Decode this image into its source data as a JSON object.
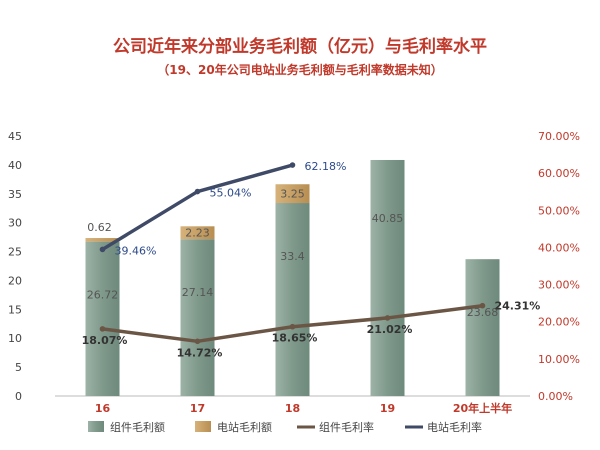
{
  "chart_data": {
    "type": "bar",
    "title": "公司近年来分部业务毛利额（亿元）与毛利率水平",
    "subtitle": "（19、20年公司电站业务毛利额与毛利率数据未知）",
    "categories": [
      "16",
      "17",
      "18",
      "19",
      "20年上半年"
    ],
    "series": [
      {
        "name": "组件毛利额",
        "type": "bar",
        "axis": "left",
        "values": [
          26.72,
          27.14,
          33.4,
          40.85,
          23.68
        ],
        "labels": [
          "26.72",
          "27.14",
          "33.4",
          "40.85",
          "23.68"
        ],
        "color": "#8aa396"
      },
      {
        "name": "电站毛利额",
        "type": "bar",
        "axis": "left",
        "values": [
          0.62,
          2.23,
          3.25,
          null,
          null
        ],
        "labels": [
          "0.62",
          "2.23",
          "3.25",
          "",
          ""
        ],
        "color": "#c9a36a"
      },
      {
        "name": "组件毛利率",
        "type": "line",
        "axis": "right",
        "values": [
          18.07,
          14.72,
          18.65,
          21.02,
          24.31
        ],
        "labels": [
          "18.07%",
          "14.72%",
          "18.65%",
          "21.02%",
          "24.31%"
        ],
        "color": "#6b5646"
      },
      {
        "name": "电站毛利率",
        "type": "line",
        "axis": "right",
        "values": [
          39.46,
          55.04,
          62.18,
          null,
          null
        ],
        "labels": [
          "39.46%",
          "55.04%",
          "62.18%",
          "",
          ""
        ],
        "color": "#3e4a66"
      }
    ],
    "ylim": [
      0,
      45
    ],
    "yticks": [
      "0",
      "5",
      "10",
      "15",
      "20",
      "25",
      "30",
      "35",
      "40",
      "45"
    ],
    "y2lim": [
      0,
      70
    ],
    "y2ticks": [
      "0.00%",
      "10.00%",
      "20.00%",
      "30.00%",
      "40.00%",
      "50.00%",
      "60.00%",
      "70.00%"
    ],
    "legend": "bottom",
    "grid": false
  }
}
